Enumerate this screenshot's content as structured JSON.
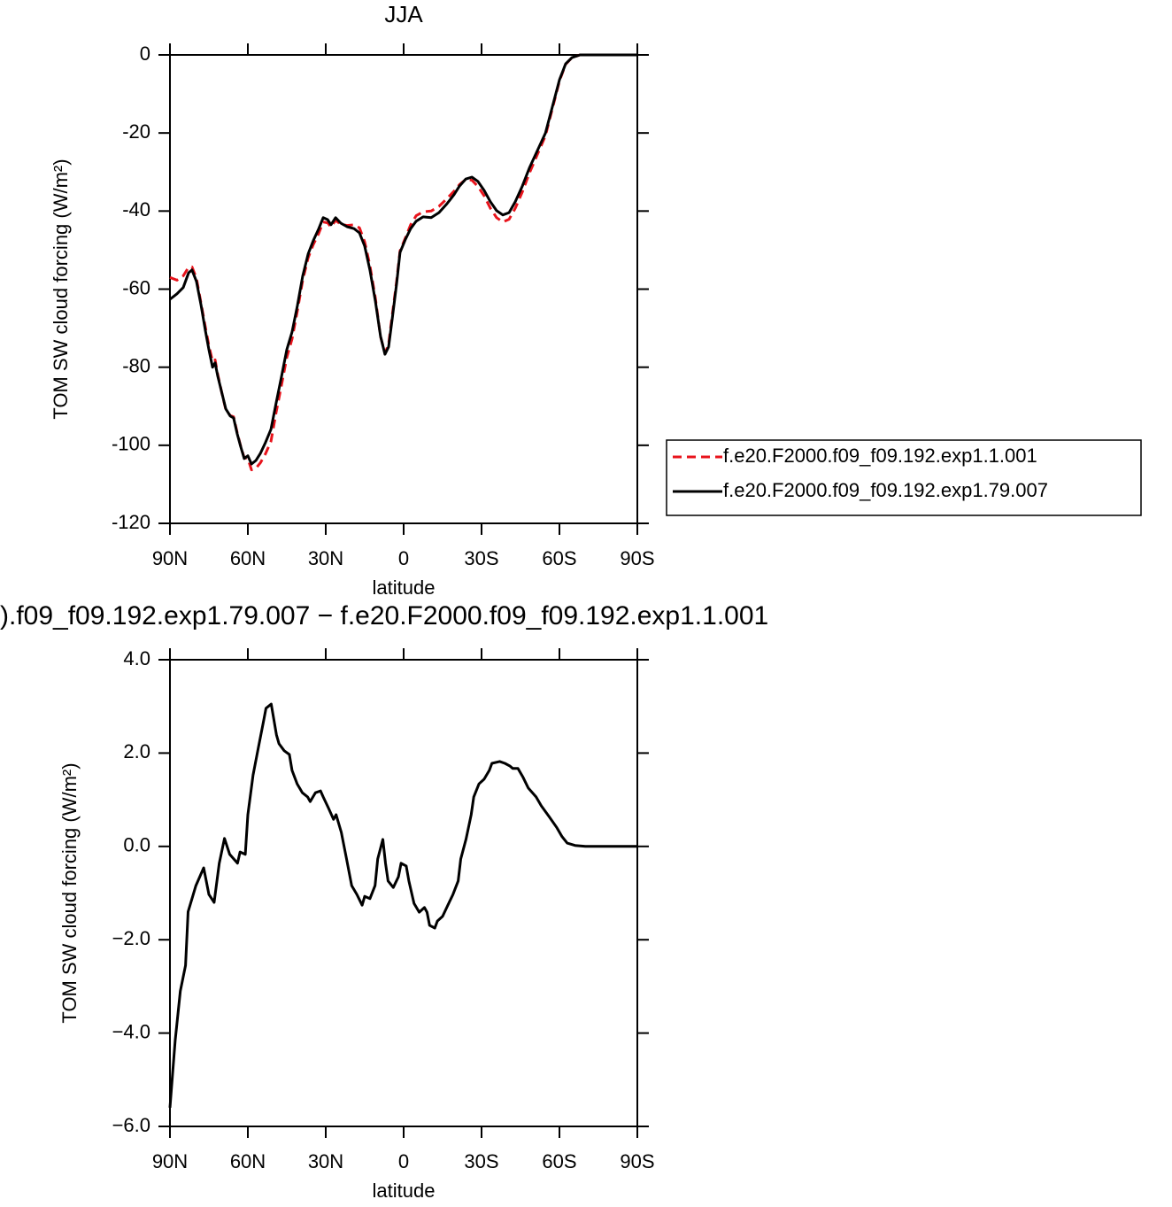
{
  "chart_data": [
    {
      "type": "line",
      "title": "JJA",
      "xlabel": "latitude",
      "ylabel": "TOM SW cloud forcing (W/m²)",
      "x": [
        90,
        87.3,
        84.9,
        82.8,
        81.5,
        79.8,
        78,
        76.4,
        75,
        73.6,
        72.6,
        71.6,
        69.9,
        68.5,
        66.8,
        65.5,
        64.1,
        62.7,
        61.4,
        60,
        58.6,
        56.9,
        55.2,
        53.2,
        51.1,
        49.1,
        47,
        45,
        43,
        40.9,
        38.9,
        36.8,
        34.8,
        32.7,
        31,
        29.3,
        28,
        26.2,
        24.2,
        21.8,
        19.1,
        17,
        15,
        13,
        10.9,
        8.9,
        7.2,
        5.8,
        4.4,
        2.7,
        1.4,
        -0.7,
        -2.7,
        -4.8,
        -7.5,
        -10.6,
        -13.6,
        -16.7,
        -19.4,
        -21.5,
        -23.9,
        -26.3,
        -28.6,
        -31,
        -33.4,
        -35.8,
        -38.2,
        -40.6,
        -43,
        -45.7,
        -48.4,
        -51.5,
        -54.6,
        -57.3,
        -60,
        -62.4,
        -64.8,
        -67.9,
        -90
      ],
      "series": [
        {
          "name": "f.e20.F2000.f09_f09.192.exp1.1.001",
          "color": "#e8141c",
          "style": "dashed",
          "values": [
            -57,
            -57.7,
            -56.6,
            -54.4,
            -54.3,
            -57.2,
            -63.7,
            -69.6,
            -74.5,
            -78.5,
            -78.1,
            -81.9,
            -87,
            -90.9,
            -92.4,
            -92.7,
            -96.8,
            -100.4,
            -103.2,
            -103.4,
            -106.3,
            -105.9,
            -104.5,
            -102.2,
            -99,
            -91.5,
            -84.5,
            -77.5,
            -72.8,
            -65.5,
            -57.8,
            -52,
            -48.6,
            -45.7,
            -42.8,
            -43,
            -44.1,
            -42.4,
            -43.4,
            -43.7,
            -43.5,
            -44.3,
            -47.9,
            -54,
            -62.2,
            -72.2,
            -76.4,
            -74.1,
            -66.7,
            -57.9,
            -50.2,
            -46.8,
            -43.5,
            -41.2,
            -40.2,
            -40,
            -38.8,
            -36.8,
            -34.9,
            -33.2,
            -31.9,
            -32.1,
            -33.7,
            -36.1,
            -39.3,
            -41.7,
            -42.8,
            -42.1,
            -39.3,
            -35.1,
            -30.3,
            -25.5,
            -20.7,
            -13.7,
            -6.7,
            -2.4,
            -0.7,
            0,
            0
          ]
        },
        {
          "name": "f.e20.F2000.f09_f09.192.exp1.79.007",
          "color": "#000000",
          "style": "solid",
          "values": [
            -62.6,
            -61.2,
            -59.6,
            -55.8,
            -55.1,
            -58,
            -64.2,
            -70.5,
            -75.5,
            -80,
            -78.9,
            -82.3,
            -86.9,
            -90.7,
            -92.5,
            -93,
            -97.1,
            -100.5,
            -103.4,
            -102.7,
            -104.8,
            -103.9,
            -102.1,
            -99.3,
            -95.9,
            -89.1,
            -82.3,
            -75.5,
            -71,
            -64.2,
            -56.7,
            -51,
            -47.6,
            -44.5,
            -41.7,
            -42.2,
            -43.5,
            -41.7,
            -43.1,
            -44,
            -44.5,
            -45.6,
            -49,
            -55.1,
            -63,
            -72.1,
            -76.7,
            -74.8,
            -67.6,
            -58.5,
            -50.6,
            -47.2,
            -44.5,
            -42.6,
            -41.5,
            -41.7,
            -40.4,
            -38.1,
            -35.8,
            -33.6,
            -31.8,
            -31.3,
            -32.4,
            -34.7,
            -37.6,
            -39.9,
            -41,
            -40.4,
            -37.6,
            -33.6,
            -29,
            -24.5,
            -20,
            -13.2,
            -6.4,
            -2.3,
            -0.7,
            0,
            0
          ]
        }
      ],
      "xlim": [
        90,
        -90
      ],
      "xticks": [
        {
          "value": 90,
          "label": "90N"
        },
        {
          "value": 60,
          "label": "60N"
        },
        {
          "value": 30,
          "label": "30N"
        },
        0,
        {
          "value": -30,
          "label": "30S"
        },
        {
          "value": -60,
          "label": "60S"
        },
        {
          "value": -90,
          "label": "90S"
        }
      ],
      "ylim": [
        -120,
        0
      ],
      "yticks": [
        0,
        -20,
        -40,
        -60,
        -80,
        -100,
        -120
      ],
      "legend": "right"
    },
    {
      "type": "line",
      "title": ").f09_f09.192.exp1.79.007 − f.e20.F2000.f09_f09.192.exp1.1.001",
      "xlabel": "latitude",
      "ylabel": "TOM SW cloud forcing (W/m²)",
      "x": [
        90,
        88,
        86,
        84,
        83,
        80,
        77,
        75,
        73,
        71,
        69,
        67,
        64,
        63,
        61,
        60,
        58,
        56,
        54,
        53,
        51,
        49,
        48,
        46,
        44,
        43,
        41,
        39,
        37,
        36,
        34,
        32,
        31,
        29,
        27,
        26,
        24,
        22,
        20,
        18,
        16,
        15,
        13,
        11,
        10,
        8,
        7,
        6,
        4,
        2,
        1,
        -1,
        -2,
        -4,
        -6,
        -8,
        -9,
        -10,
        -12,
        -13,
        -15,
        -17,
        -19,
        -21,
        -22,
        -24,
        -26,
        -27,
        -29,
        -31,
        -33,
        -34,
        -37,
        -39,
        -41,
        -42,
        -44,
        -46,
        -48,
        -51,
        -53,
        -56,
        -59,
        -61,
        -63,
        -66,
        -70,
        -83,
        -90
      ],
      "series": [
        {
          "name": "diff",
          "color": "#000000",
          "style": "solid",
          "values": [
            -5.6,
            -4.16,
            -3.1,
            -2.55,
            -1.4,
            -0.84,
            -0.46,
            -1.03,
            -1.2,
            -0.36,
            0.17,
            -0.17,
            -0.36,
            -0.12,
            -0.17,
            0.68,
            1.53,
            2.1,
            2.67,
            2.96,
            3.05,
            2.39,
            2.2,
            2.05,
            1.97,
            1.63,
            1.34,
            1.15,
            1.06,
            0.96,
            1.15,
            1.19,
            1.06,
            0.83,
            0.58,
            0.68,
            0.3,
            -0.27,
            -0.84,
            -1.03,
            -1.26,
            -1.07,
            -1.12,
            -0.84,
            -0.27,
            0.15,
            -0.36,
            -0.74,
            -0.88,
            -0.65,
            -0.36,
            -0.42,
            -0.74,
            -1.22,
            -1.41,
            -1.31,
            -1.41,
            -1.69,
            -1.75,
            -1.6,
            -1.5,
            -1.26,
            -1.03,
            -0.74,
            -0.27,
            0.15,
            0.68,
            1.06,
            1.34,
            1.44,
            1.63,
            1.78,
            1.82,
            1.78,
            1.72,
            1.67,
            1.67,
            1.48,
            1.25,
            1.06,
            0.87,
            0.64,
            0.4,
            0.21,
            0.07,
            0.02,
            0,
            0,
            0
          ]
        }
      ],
      "xlim": [
        90,
        -90
      ],
      "xticks": [
        {
          "value": 90,
          "label": "90N"
        },
        {
          "value": 60,
          "label": "60N"
        },
        {
          "value": 30,
          "label": "30N"
        },
        0,
        {
          "value": -30,
          "label": "30S"
        },
        {
          "value": -60,
          "label": "60S"
        },
        {
          "value": -90,
          "label": "90S"
        }
      ],
      "ylim": [
        -6,
        4
      ],
      "yticks": [
        {
          "value": 4,
          "label": "4.0"
        },
        {
          "value": 2,
          "label": "2.0"
        },
        {
          "value": 0,
          "label": "0.0"
        },
        {
          "value": -2,
          "label": "−2.0"
        },
        {
          "value": -4,
          "label": "−4.0"
        },
        {
          "value": -6,
          "label": "−6.0"
        }
      ]
    }
  ]
}
